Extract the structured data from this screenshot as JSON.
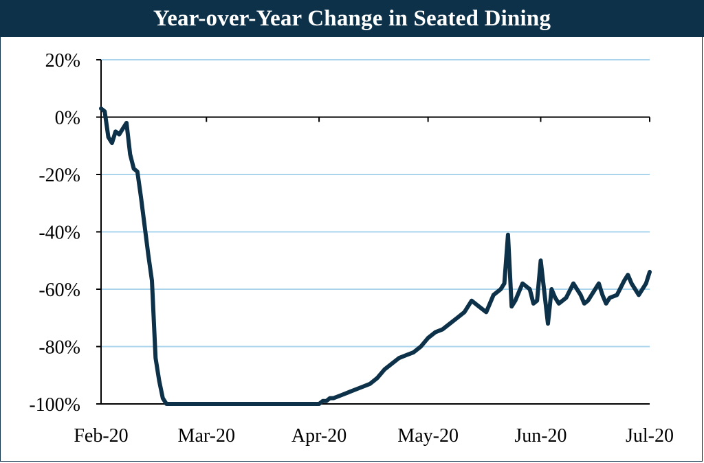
{
  "colors": {
    "title_bg": "#0d3148",
    "line": "#0d3148",
    "grid": "#a9d4ec"
  },
  "chart_data": {
    "type": "line",
    "title": "Year-over-Year Change in Seated Dining",
    "xlabel": "",
    "ylabel": "",
    "ylim": [
      -100,
      20
    ],
    "ytick_labels": [
      "20%",
      "0%",
      "-20%",
      "-40%",
      "-60%",
      "-80%",
      "-100%"
    ],
    "yticks": [
      20,
      0,
      -20,
      -40,
      -60,
      -80,
      -100
    ],
    "xtick_labels": [
      "Feb-20",
      "Mar-20",
      "Apr-20",
      "May-20",
      "Jun-20",
      "Jul-20"
    ],
    "xticks": [
      "2020-02-01",
      "2020-03-01",
      "2020-04-01",
      "2020-05-01",
      "2020-06-01",
      "2020-07-01"
    ],
    "grid": true,
    "series": [
      {
        "x": [
          "2020-02-01",
          "2020-02-02",
          "2020-02-03",
          "2020-02-04",
          "2020-02-05",
          "2020-02-06",
          "2020-02-07",
          "2020-02-08",
          "2020-02-09",
          "2020-02-10",
          "2020-02-11",
          "2020-02-12",
          "2020-02-13",
          "2020-02-14",
          "2020-02-15",
          "2020-02-16",
          "2020-02-17",
          "2020-02-18",
          "2020-02-19",
          "2020-02-20",
          "2020-02-21",
          "2020-02-22",
          "2020-02-23",
          "2020-02-24",
          "2020-03-01",
          "2020-03-15",
          "2020-04-01",
          "2020-04-02",
          "2020-04-03",
          "2020-04-04",
          "2020-04-05",
          "2020-04-07",
          "2020-04-09",
          "2020-04-11",
          "2020-04-13",
          "2020-04-15",
          "2020-04-17",
          "2020-04-19",
          "2020-04-21",
          "2020-04-23",
          "2020-04-25",
          "2020-04-27",
          "2020-04-29",
          "2020-05-01",
          "2020-05-03",
          "2020-05-05",
          "2020-05-07",
          "2020-05-09",
          "2020-05-11",
          "2020-05-13",
          "2020-05-15",
          "2020-05-17",
          "2020-05-19",
          "2020-05-21",
          "2020-05-22",
          "2020-05-23",
          "2020-05-24",
          "2020-05-25",
          "2020-05-27",
          "2020-05-29",
          "2020-05-30",
          "2020-05-31",
          "2020-06-01",
          "2020-06-03",
          "2020-06-04",
          "2020-06-05",
          "2020-06-06",
          "2020-06-08",
          "2020-06-10",
          "2020-06-12",
          "2020-06-13",
          "2020-06-14",
          "2020-06-16",
          "2020-06-17",
          "2020-06-18",
          "2020-06-19",
          "2020-06-20",
          "2020-06-22",
          "2020-06-24",
          "2020-06-25",
          "2020-06-26",
          "2020-06-28",
          "2020-06-30",
          "2020-07-01"
        ],
        "values": [
          3,
          2,
          -7,
          -9,
          -5,
          -6,
          -4,
          -2,
          -13,
          -18,
          -19,
          -28,
          -38,
          -48,
          -57,
          -84,
          -92,
          -98,
          -100,
          -100,
          -100,
          -100,
          -100,
          -100,
          -100,
          -100,
          -100,
          -99,
          -99,
          -98,
          -98,
          -97,
          -96,
          -95,
          -94,
          -93,
          -91,
          -88,
          -86,
          -84,
          -83,
          -82,
          -80,
          -77,
          -75,
          -74,
          -72,
          -70,
          -68,
          -64,
          -66,
          -68,
          -62,
          -60,
          -58,
          -41,
          -66,
          -64,
          -58,
          -60,
          -65,
          -64,
          -50,
          -72,
          -60,
          -63,
          -65,
          -63,
          -58,
          -62,
          -65,
          -64,
          -60,
          -58,
          -62,
          -65,
          -63,
          -62,
          -57,
          -55,
          -58,
          -62,
          -58,
          -54
        ]
      }
    ]
  }
}
